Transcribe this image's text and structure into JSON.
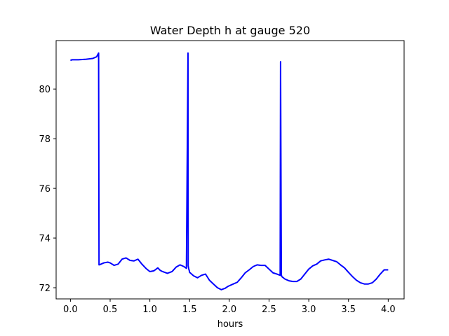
{
  "chart_data": {
    "type": "line",
    "title": "Water Depth h at gauge 520",
    "xlabel": "hours",
    "ylabel": "",
    "xlim": [
      -0.18,
      4.2
    ],
    "ylim": [
      71.55,
      81.95
    ],
    "xticks": [
      0.0,
      0.5,
      1.0,
      1.5,
      2.0,
      2.5,
      3.0,
      3.5,
      4.0
    ],
    "xtick_labels": [
      "0.0",
      "0.5",
      "1.0",
      "1.5",
      "2.0",
      "2.5",
      "3.0",
      "3.5",
      "4.0"
    ],
    "yticks": [
      72,
      74,
      76,
      78,
      80
    ],
    "ytick_labels": [
      "72",
      "74",
      "76",
      "78",
      "80"
    ],
    "grid": false,
    "series": [
      {
        "color": "#0000ff",
        "x": [
          0.0,
          0.02,
          0.1,
          0.2,
          0.28,
          0.33,
          0.355,
          0.36,
          0.37,
          0.42,
          0.47,
          0.5,
          0.55,
          0.6,
          0.65,
          0.7,
          0.75,
          0.8,
          0.85,
          0.9,
          0.95,
          1.0,
          1.05,
          1.1,
          1.13,
          1.16,
          1.22,
          1.28,
          1.33,
          1.38,
          1.43,
          1.46,
          1.48,
          1.482,
          1.49,
          1.495,
          1.5,
          1.55,
          1.6,
          1.65,
          1.7,
          1.75,
          1.8,
          1.85,
          1.9,
          1.95,
          1.98,
          2.05,
          2.1,
          2.15,
          2.2,
          2.25,
          2.3,
          2.35,
          2.4,
          2.45,
          2.5,
          2.55,
          2.6,
          2.64,
          2.645,
          2.655,
          2.66,
          2.7,
          2.75,
          2.8,
          2.85,
          2.9,
          2.95,
          3.0,
          3.05,
          3.1,
          3.15,
          3.2,
          3.25,
          3.3,
          3.35,
          3.4,
          3.45,
          3.5,
          3.55,
          3.6,
          3.65,
          3.7,
          3.75,
          3.8,
          3.85,
          3.9,
          3.95,
          4.0
        ],
        "y": [
          81.15,
          81.18,
          81.18,
          81.2,
          81.23,
          81.3,
          81.45,
          72.92,
          72.93,
          73.0,
          73.03,
          73.0,
          72.9,
          72.95,
          73.15,
          73.2,
          73.1,
          73.08,
          73.15,
          72.95,
          72.78,
          72.65,
          72.68,
          72.8,
          72.7,
          72.65,
          72.58,
          72.65,
          72.83,
          72.92,
          72.85,
          72.78,
          81.45,
          72.88,
          72.75,
          72.7,
          72.62,
          72.48,
          72.4,
          72.5,
          72.55,
          72.3,
          72.15,
          72.0,
          71.92,
          71.98,
          72.05,
          72.15,
          72.22,
          72.4,
          72.6,
          72.72,
          72.85,
          72.92,
          72.9,
          72.9,
          72.75,
          72.6,
          72.55,
          72.5,
          81.1,
          72.52,
          72.45,
          72.35,
          72.28,
          72.25,
          72.25,
          72.35,
          72.55,
          72.75,
          72.88,
          72.95,
          73.08,
          73.12,
          73.15,
          73.1,
          73.05,
          72.92,
          72.8,
          72.62,
          72.45,
          72.3,
          72.2,
          72.15,
          72.15,
          72.2,
          72.35,
          72.55,
          72.72,
          72.72
        ]
      }
    ]
  }
}
